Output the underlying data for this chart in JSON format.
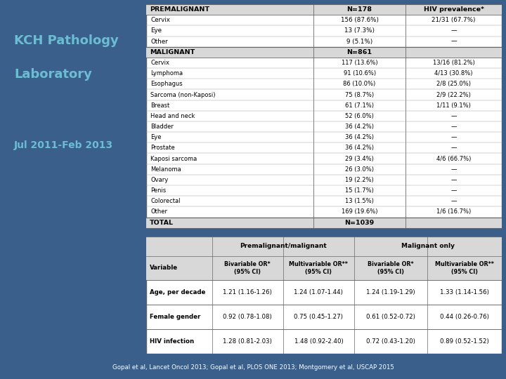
{
  "slide_bg": "#3A5F8A",
  "title_line1": "KCH Pathology",
  "title_line2": "Laboratory",
  "subtitle": "Jul 2011-Feb 2013",
  "title_color": "#6BBDD4",
  "subtitle_color": "#6BBDD4",
  "footer_text": "Gopal et al, Lancet Oncol 2013; Gopal et al, PLOS ONE 2013; Montgomery et al, USCAP 2015",
  "header_bg": "#D8D8D8",
  "table_border": "#666666",
  "table_line": "#999999",
  "table1": {
    "pre_header": "PREMALIGNANT",
    "pre_n": "N=178",
    "pre_hiv": "HIV prevalence*",
    "pre_rows": [
      [
        "Cervix",
        "156 (87.6%)",
        "21/31 (67.7%)"
      ],
      [
        "Eye",
        "13 (7.3%)",
        "—"
      ],
      [
        "Other",
        "9 (5.1%)",
        "—"
      ]
    ],
    "mal_header": "MALIGNANT",
    "mal_n": "N=861",
    "mal_rows": [
      [
        "Cervix",
        "117 (13.6%)",
        "13/16 (81.2%)"
      ],
      [
        "Lymphoma",
        "91 (10.6%)",
        "4/13 (30.8%)"
      ],
      [
        "Esophagus",
        "86 (10.0%)",
        "2/8 (25.0%)"
      ],
      [
        "Sarcoma (non-Kaposi)",
        "75 (8.7%)",
        "2/9 (22.2%)"
      ],
      [
        "Breast",
        "61 (7.1%)",
        "1/11 (9.1%)"
      ],
      [
        "Head and neck",
        "52 (6.0%)",
        "—"
      ],
      [
        "Bladder",
        "36 (4.2%)",
        "—"
      ],
      [
        "Eye",
        "36 (4.2%)",
        "—"
      ],
      [
        "Prostate",
        "36 (4.2%)",
        "—"
      ],
      [
        "Kaposi sarcoma",
        "29 (3.4%)",
        "4/6 (66.7%)"
      ],
      [
        "Melanoma",
        "26 (3.0%)",
        "—"
      ],
      [
        "Ovary",
        "19 (2.2%)",
        "—"
      ],
      [
        "Penis",
        "15 (1.7%)",
        "—"
      ],
      [
        "Colorectal",
        "13 (1.5%)",
        "—"
      ],
      [
        "Other",
        "169 (19.6%)",
        "1/6 (16.7%)"
      ]
    ],
    "total_label": "TOTAL",
    "total_n": "N=1039"
  },
  "table2": {
    "group_headers": [
      "Premalignant/malignant",
      "Malignant only"
    ],
    "col_headers": [
      "Variable",
      "Bivariable OR*\n(95% CI)",
      "Multivariable OR**\n(95% CI)",
      "Bivariable OR*\n(95% CI)",
      "Multivariable OR**\n(95% CI)"
    ],
    "rows": [
      [
        "Age, per decade",
        "1.21 (1.16-1.26)",
        "1.24 (1.07-1.44)",
        "1.24 (1.19-1.29)",
        "1.33 (1.14-1.56)"
      ],
      [
        "Female gender",
        "0.92 (0.78-1.08)",
        "0.75 (0.45-1.27)",
        "0.61 (0.52-0.72)",
        "0.44 (0.26-0.76)"
      ],
      [
        "HIV infection",
        "1.28 (0.81-2.03)",
        "1.48 (0.92-2.40)",
        "0.72 (0.43-1.20)",
        "0.89 (0.52-1.52)"
      ]
    ]
  }
}
